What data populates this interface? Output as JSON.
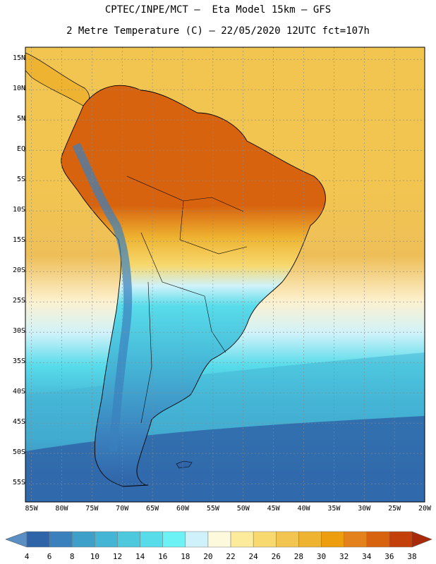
{
  "header": {
    "line1": "CPTEC/INPE/MCT –  Eta Model 15km – GFS",
    "line2": "2 Metre Temperature (C) – 22/05/2020 12UTC fct=107h"
  },
  "map": {
    "lat_labels": [
      "15N",
      "10N",
      "5N",
      "EQ",
      "5S",
      "10S",
      "15S",
      "20S",
      "25S",
      "30S",
      "35S",
      "40S",
      "45S",
      "50S",
      "55S"
    ],
    "lon_labels": [
      "85W",
      "80W",
      "75W",
      "70W",
      "65W",
      "60W",
      "55W",
      "50W",
      "45W",
      "40W",
      "35W",
      "30W",
      "25W",
      "20W"
    ],
    "lat_range": [
      -58,
      17
    ],
    "lon_range": [
      -86,
      -20
    ],
    "grid": "dotted every 5 degrees"
  },
  "colorbar": {
    "labels": [
      "4",
      "6",
      "8",
      "10",
      "12",
      "14",
      "16",
      "18",
      "20",
      "22",
      "24",
      "26",
      "28",
      "30",
      "32",
      "34",
      "36",
      "38"
    ],
    "colors": [
      "#5a8fc4",
      "#2f64a8",
      "#3a80bd",
      "#3ea0c9",
      "#45b5d6",
      "#4dc8dd",
      "#58dcea",
      "#6cf2f5",
      "#cff2fa",
      "#fdf9dc",
      "#fbeb9b",
      "#f7d970",
      "#f2c550",
      "#eeb431",
      "#ec9e0e",
      "#e3821c",
      "#d8630f",
      "#c4400a",
      "#a82a08"
    ]
  },
  "colors": {
    "ocean_south_deep": "#2f64a8",
    "ocean_south": "#45a8d0",
    "ocean_mid": "#7fe0f0",
    "ocean_tropical": "#f2c550",
    "land_hot": "#d8630f",
    "land_warm": "#eeb431",
    "land_cold": "#3a80bd",
    "border": "#000000"
  }
}
